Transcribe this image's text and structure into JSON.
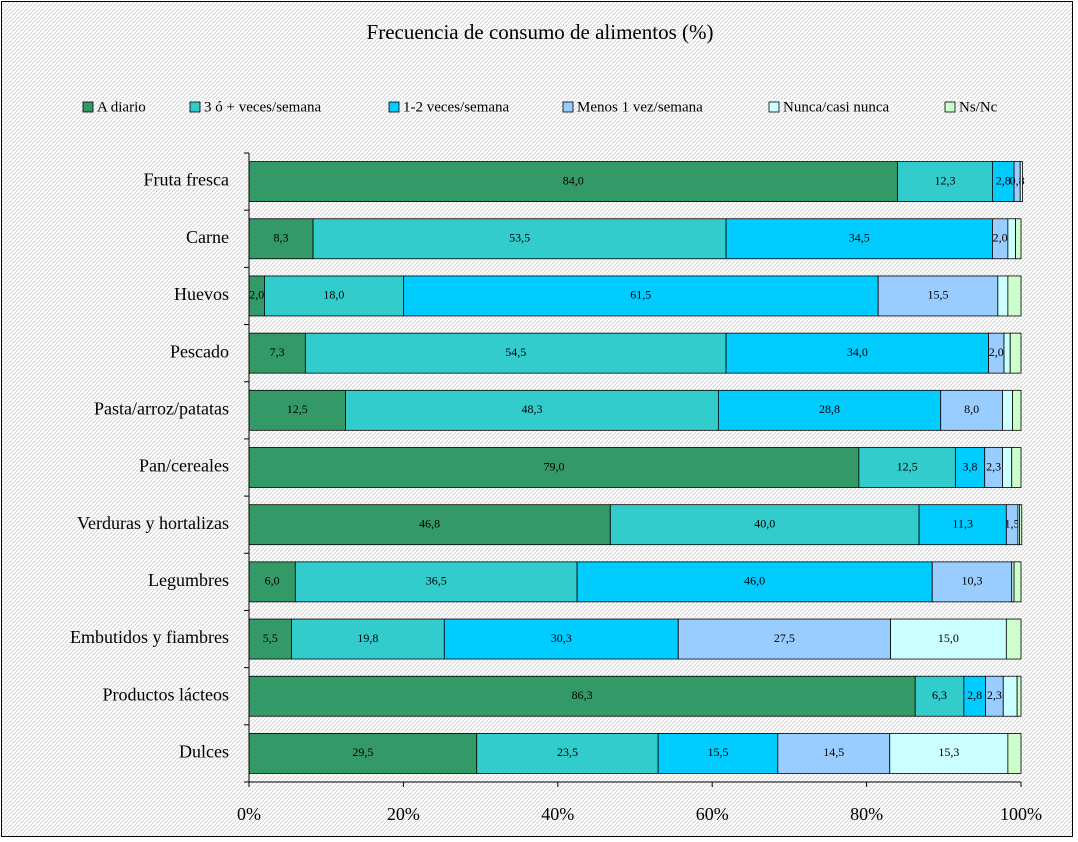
{
  "chart_data": {
    "type": "bar",
    "orientation": "horizontal",
    "stacked": true,
    "title": "Frecuencia de consumo de alimentos (%)",
    "categories": [
      "Fruta fresca",
      "Carne",
      "Huevos",
      "Pescado",
      "Pasta/arroz/patatas",
      "Pan/cereales",
      "Verduras y hortalizas",
      "Legumbres",
      "Embutidos y fiambres",
      "Productos lácteos",
      "Dulces"
    ],
    "series": [
      {
        "name": "A diario",
        "color": "#339966",
        "values": [
          84.0,
          8.3,
          2.0,
          7.3,
          12.5,
          79.0,
          46.8,
          6.0,
          5.5,
          86.3,
          29.5
        ],
        "value_labels": [
          "84,0",
          "8,3",
          "2,0",
          "7,3",
          "12,5",
          "79,0",
          "46,8",
          "6,0",
          "5,5",
          "86,3",
          "29,5"
        ]
      },
      {
        "name": "3 ó + veces/semana",
        "color": "#33cccc",
        "values": [
          12.3,
          53.5,
          18.0,
          54.5,
          48.3,
          12.5,
          40.0,
          36.5,
          19.8,
          6.3,
          23.5
        ],
        "value_labels": [
          "12,3",
          "53,5",
          "18,0",
          "54,5",
          "48,3",
          "12,5",
          "40,0",
          "36,5",
          "19,8",
          "6,3",
          "23,5"
        ]
      },
      {
        "name": "1-2 veces/semana",
        "color": "#00ccff",
        "values": [
          2.8,
          34.5,
          61.5,
          34.0,
          28.8,
          3.8,
          11.3,
          46.0,
          30.3,
          2.8,
          15.5
        ],
        "value_labels": [
          "2,8",
          "34,5",
          "61,5",
          "34,0",
          "28,8",
          "3,8",
          "11,3",
          "46,0",
          "30,3",
          "2,8",
          "15,5"
        ]
      },
      {
        "name": "Menos 1 vez/semana",
        "color": "#99ccff",
        "values": [
          0.8,
          2.0,
          15.5,
          2.0,
          8.0,
          2.3,
          1.5,
          10.3,
          27.5,
          2.3,
          14.5
        ],
        "value_labels": [
          "0,8",
          "2,0",
          "15,5",
          "2,0",
          "8,0",
          "2,3",
          "1,5",
          "10,3",
          "27,5",
          "2,3",
          "14,5"
        ]
      },
      {
        "name": "Nunca/casi nunca",
        "color": "#ccffff",
        "values": [
          0.3,
          1.0,
          1.3,
          0.8,
          1.3,
          1.2,
          0.2,
          0.3,
          15.0,
          1.8,
          15.3
        ],
        "value_labels": [
          null,
          null,
          null,
          null,
          null,
          null,
          null,
          null,
          "15,0",
          null,
          "15,3"
        ]
      },
      {
        "name": "Ns/Nc",
        "color": "#ccffcc",
        "values": [
          0.0,
          0.7,
          1.7,
          1.4,
          1.1,
          1.2,
          0.3,
          0.9,
          1.9,
          0.5,
          1.7
        ],
        "value_labels": [
          null,
          null,
          null,
          null,
          null,
          null,
          null,
          null,
          null,
          null,
          null
        ]
      }
    ],
    "xlim": [
      0,
      100
    ],
    "xticks": [
      {
        "value": 0,
        "label": "0%"
      },
      {
        "value": 20,
        "label": "20%"
      },
      {
        "value": 40,
        "label": "40%"
      },
      {
        "value": 60,
        "label": "60%"
      },
      {
        "value": 80,
        "label": "80%"
      },
      {
        "value": 100,
        "label": "100%"
      }
    ],
    "legend": "top"
  }
}
